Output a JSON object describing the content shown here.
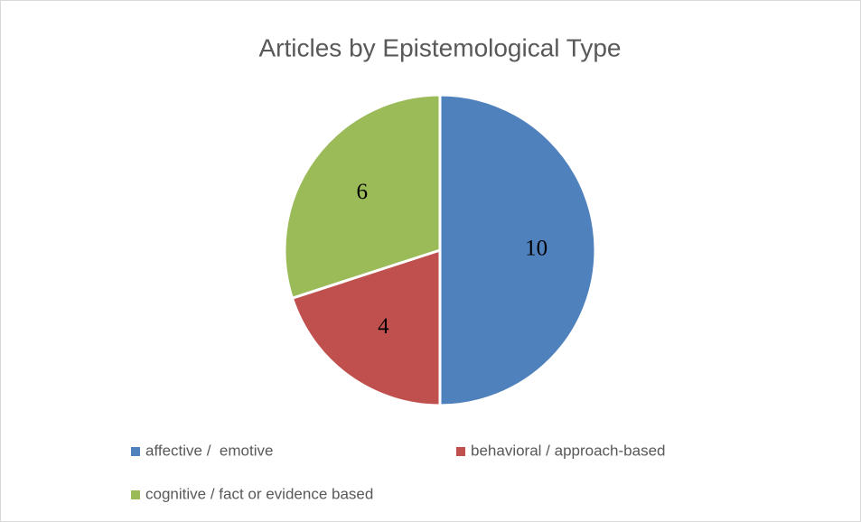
{
  "chart_data": {
    "type": "pie",
    "title": "Articles by Epistemological Type",
    "categories": [
      "affective /  emotive",
      "behavioral / approach-based",
      "cognitive / fact or evidence based"
    ],
    "values": [
      10,
      4,
      6
    ],
    "colors": [
      "#4f81bd",
      "#c0504d",
      "#9bbb59"
    ],
    "legend": "bottom"
  }
}
